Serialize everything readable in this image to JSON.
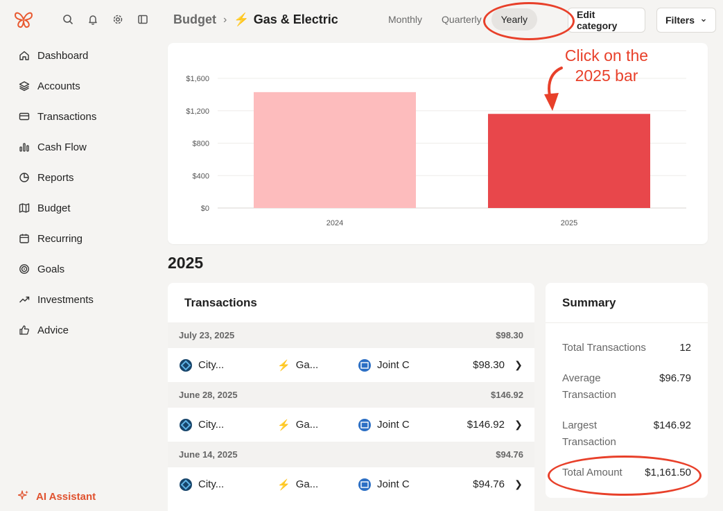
{
  "sidebar": {
    "top_icons": [
      "search-icon",
      "bell-icon",
      "gear-icon",
      "sidebar-toggle-icon"
    ],
    "items": [
      {
        "label": "Dashboard",
        "icon": "home-icon"
      },
      {
        "label": "Accounts",
        "icon": "layers-icon"
      },
      {
        "label": "Transactions",
        "icon": "credit-card-icon"
      },
      {
        "label": "Cash Flow",
        "icon": "bar-chart-icon"
      },
      {
        "label": "Reports",
        "icon": "pie-chart-icon"
      },
      {
        "label": "Budget",
        "icon": "map-icon"
      },
      {
        "label": "Recurring",
        "icon": "calendar-icon"
      },
      {
        "label": "Goals",
        "icon": "target-icon"
      },
      {
        "label": "Investments",
        "icon": "trend-up-icon"
      },
      {
        "label": "Advice",
        "icon": "thumbs-up-icon"
      }
    ],
    "ai_assistant": "AI Assistant"
  },
  "header": {
    "breadcrumb_root": "Budget",
    "breadcrumb_current": "Gas & Electric",
    "tabs": [
      {
        "label": "Monthly",
        "active": false
      },
      {
        "label": "Quarterly",
        "active": false
      },
      {
        "label": "Yearly",
        "active": true
      }
    ],
    "edit_button": "Edit category",
    "filters_button": "Filters"
  },
  "chart_data": {
    "type": "bar",
    "categories": [
      "2024",
      "2025"
    ],
    "values": [
      1430,
      1161.5
    ],
    "ylim": [
      0,
      1600
    ],
    "yticks": [
      "$0",
      "$400",
      "$800",
      "$1,200",
      "$1,600"
    ],
    "colors": [
      "#fdbcbd",
      "#e8474b"
    ],
    "grid": true
  },
  "annotation": {
    "text_line1": "Click on the",
    "text_line2": "2025 bar"
  },
  "section_title": "2025",
  "transactions": {
    "title": "Transactions",
    "groups": [
      {
        "date": "July 23, 2025",
        "total": "$98.30",
        "merchant": "City...",
        "category": "Ga...",
        "account": "Joint C",
        "amount": "$98.30"
      },
      {
        "date": "June 28, 2025",
        "total": "$146.92",
        "merchant": "City...",
        "category": "Ga...",
        "account": "Joint C",
        "amount": "$146.92"
      },
      {
        "date": "June 14, 2025",
        "total": "$94.76",
        "merchant": "City...",
        "category": "Ga...",
        "account": "Joint C",
        "amount": "$94.76"
      }
    ]
  },
  "summary": {
    "title": "Summary",
    "rows": [
      {
        "label": "Total Transactions",
        "value": "12"
      },
      {
        "label": "Average Transaction",
        "value": "$96.79"
      },
      {
        "label": "Largest Transaction",
        "value": "$146.92"
      },
      {
        "label": "Total Amount",
        "value": "$1,161.50"
      }
    ]
  }
}
